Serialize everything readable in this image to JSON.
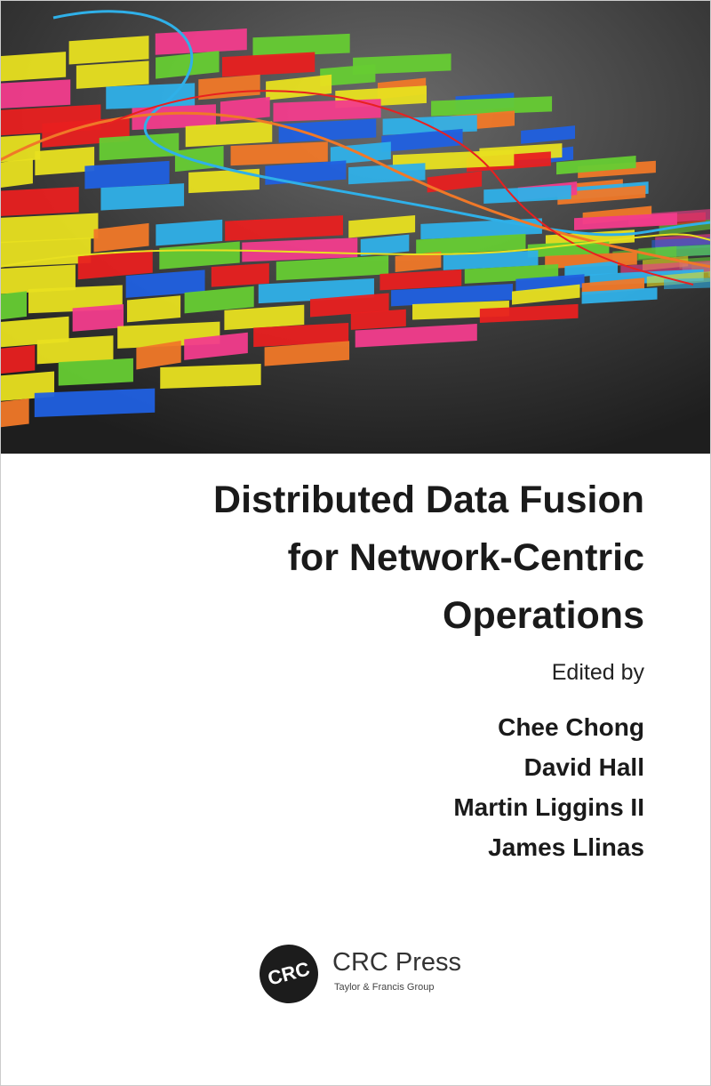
{
  "cover": {
    "title_lines": [
      "Distributed Data Fusion",
      "for Network-Centric",
      "Operations"
    ],
    "edited_by": "Edited by",
    "editors": [
      "Chee Chong",
      "David Hall",
      "Martin Liggins II",
      "James Llinas"
    ],
    "publisher": {
      "seal": "CRC",
      "name": "CRC Press",
      "group": "Taylor & Francis Group"
    },
    "colors": {
      "background_top": "#3a3a3a",
      "ribbons": [
        "#e8e020",
        "#f23c8c",
        "#2fb0e8",
        "#66cc33",
        "#f07828",
        "#e82020",
        "#2060e0"
      ]
    }
  }
}
